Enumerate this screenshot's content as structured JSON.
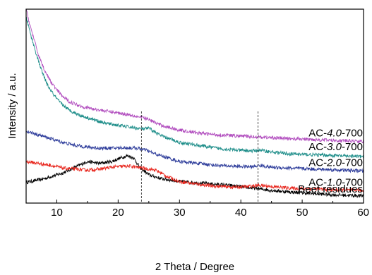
{
  "chart_data": {
    "type": "line",
    "title": "",
    "xlabel": "2 Theta / Degree",
    "ylabel": "Intensity / a.u.",
    "xlim": [
      5,
      60
    ],
    "ylim": [
      0,
      1
    ],
    "xticks": [
      10,
      20,
      30,
      40,
      50,
      60
    ],
    "y_tick_labels": false,
    "grid": false,
    "legend": "none",
    "reference_lines_x": [
      23.8,
      42.8
    ],
    "series": [
      {
        "name": "Beet residues",
        "label_parts": [
          "Beet residues"
        ],
        "color": "#000000",
        "x": [
          5,
          8,
          11,
          13,
          15,
          17,
          19,
          20.5,
          21.5,
          22.5,
          23.5,
          25,
          27,
          30,
          34,
          38,
          42,
          46,
          50,
          55,
          60
        ],
        "y": [
          0.09,
          0.11,
          0.14,
          0.17,
          0.2,
          0.19,
          0.2,
          0.22,
          0.23,
          0.22,
          0.17,
          0.13,
          0.11,
          0.095,
          0.085,
          0.075,
          0.06,
          0.045,
          0.035,
          0.025,
          0.02
        ]
      },
      {
        "name": "AC-1.0-700",
        "label_parts": [
          "AC-",
          "1.0",
          "-700"
        ],
        "color": "#e8261d",
        "x": [
          5,
          7,
          9,
          11,
          13,
          15,
          17,
          19,
          21,
          22,
          23,
          24,
          25,
          26,
          27,
          28,
          30,
          33,
          36,
          39,
          41,
          43,
          45,
          48,
          52,
          56,
          60
        ],
        "y": [
          0.2,
          0.19,
          0.18,
          0.165,
          0.16,
          0.155,
          0.16,
          0.17,
          0.175,
          0.175,
          0.17,
          0.165,
          0.16,
          0.155,
          0.14,
          0.12,
          0.095,
          0.08,
          0.07,
          0.065,
          0.068,
          0.075,
          0.068,
          0.06,
          0.055,
          0.05,
          0.048
        ]
      },
      {
        "name": "AC-2.0-700",
        "label_parts": [
          "AC-",
          "2.0",
          "-700"
        ],
        "color": "#2e3d9b",
        "x": [
          5,
          7,
          9,
          11,
          13,
          15,
          17,
          19,
          21,
          23,
          24.5,
          26,
          28,
          30,
          33,
          36,
          39,
          42,
          43,
          45,
          48,
          52,
          56,
          60
        ],
        "y": [
          0.36,
          0.34,
          0.32,
          0.3,
          0.285,
          0.275,
          0.27,
          0.27,
          0.272,
          0.27,
          0.26,
          0.24,
          0.22,
          0.2,
          0.19,
          0.18,
          0.175,
          0.172,
          0.18,
          0.17,
          0.165,
          0.16,
          0.155,
          0.15
        ]
      },
      {
        "name": "AC-3.0-700",
        "label_parts": [
          "AC-",
          "3.0",
          "-700"
        ],
        "color": "#1f8e8a",
        "x": [
          5,
          5.8,
          6.7,
          7.6,
          8.5,
          9.5,
          10.5,
          12,
          14,
          16,
          18,
          20,
          22,
          24,
          25,
          27,
          30,
          33,
          36,
          39,
          42,
          43,
          45,
          48,
          52,
          56,
          60
        ],
        "y": [
          0.96,
          0.86,
          0.76,
          0.67,
          0.6,
          0.55,
          0.51,
          0.47,
          0.44,
          0.42,
          0.4,
          0.39,
          0.38,
          0.37,
          0.375,
          0.335,
          0.3,
          0.285,
          0.27,
          0.26,
          0.255,
          0.26,
          0.25,
          0.24,
          0.235,
          0.23,
          0.225
        ]
      },
      {
        "name": "AC-4.0-700",
        "label_parts": [
          "AC-",
          "4.0",
          "-700"
        ],
        "color": "#b24fbf",
        "x": [
          5,
          5.6,
          6.3,
          7,
          8,
          9,
          10,
          11,
          12,
          14,
          16,
          18,
          20,
          22,
          24,
          25,
          27,
          30,
          33,
          36,
          39,
          42,
          45,
          48,
          52,
          56,
          60
        ],
        "y": [
          1.0,
          0.92,
          0.84,
          0.76,
          0.68,
          0.62,
          0.575,
          0.54,
          0.515,
          0.49,
          0.475,
          0.465,
          0.455,
          0.445,
          0.43,
          0.42,
          0.39,
          0.365,
          0.35,
          0.34,
          0.335,
          0.33,
          0.325,
          0.32,
          0.315,
          0.31,
          0.305
        ]
      }
    ]
  }
}
